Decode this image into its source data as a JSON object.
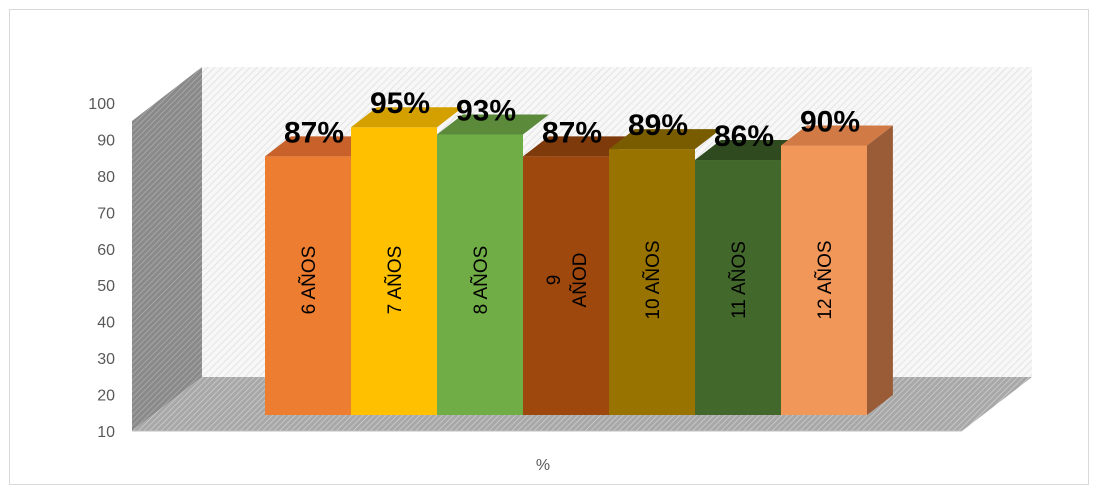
{
  "chart_data": {
    "type": "bar",
    "style": "3d-column",
    "categories": [
      "6 AÑOS",
      "7 AÑOS",
      "8 AÑOS",
      "9 AÑOD",
      "10 AÑOS",
      "11 AÑOS",
      "12 AÑOS"
    ],
    "category_lines": [
      [
        "6 AÑOS"
      ],
      [
        "7 AÑOS"
      ],
      [
        "8 AÑOS"
      ],
      [
        "9",
        "AÑOD"
      ],
      [
        "10 AÑOS"
      ],
      [
        "11 AÑOS"
      ],
      [
        "12 AÑOS"
      ]
    ],
    "values": [
      87,
      95,
      93,
      87,
      89,
      86,
      90
    ],
    "data_labels": [
      "87%",
      "95%",
      "93%",
      "87%",
      "89%",
      "86%",
      "90%"
    ],
    "xlabel": "%",
    "ylabel": "",
    "title": "",
    "ylim": [
      10,
      100
    ],
    "yticks": [
      "10",
      "20",
      "30",
      "40",
      "50",
      "60",
      "70",
      "80",
      "90",
      "100"
    ],
    "grid": false,
    "legend": "none",
    "colors": {
      "bars": [
        "#ed7d31",
        "#ffc000",
        "#70ad47",
        "#9e480e",
        "#997300",
        "#43682b",
        "#f1975a"
      ],
      "tops": [
        "#c8612a",
        "#d4a000",
        "#5a8a3a",
        "#7f3a0b",
        "#7a5c00",
        "#2f4a1e",
        "#d17a45"
      ],
      "sides": [
        "#a85522",
        "#b38600",
        "#4e7732",
        "#6b300a",
        "#665000",
        "#2a4119",
        "#9a5c36"
      ],
      "floor": "#c8c8c8",
      "wall": "#e8e8e8",
      "axis_text": "#595959"
    }
  }
}
